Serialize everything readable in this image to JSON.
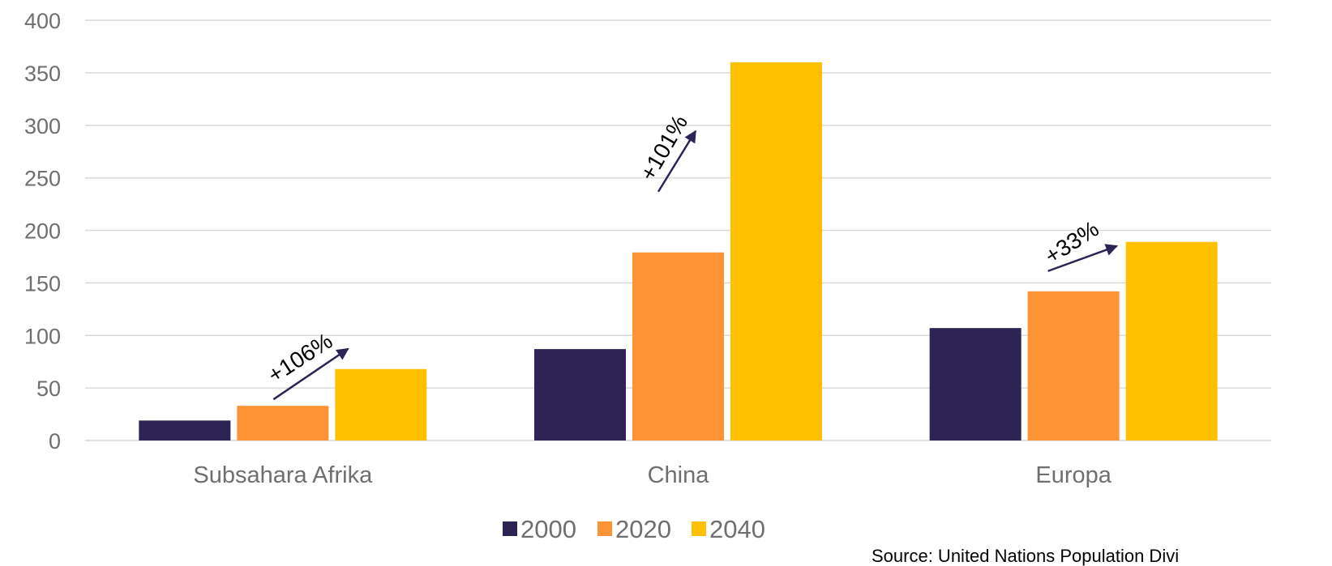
{
  "chart_data": {
    "type": "bar",
    "categories": [
      "Subsahara Afrika",
      "China",
      "Europa"
    ],
    "series": [
      {
        "name": "2000",
        "values": [
          19,
          87,
          107
        ],
        "color": "#2e2355"
      },
      {
        "name": "2020",
        "values": [
          33,
          179,
          142
        ],
        "color": "#fd9335"
      },
      {
        "name": "2040",
        "values": [
          68,
          360,
          189
        ],
        "color": "#fec000"
      }
    ],
    "ylim": [
      0,
      400
    ],
    "yticks": [
      0,
      50,
      100,
      150,
      200,
      250,
      300,
      350,
      400
    ],
    "grid": true,
    "legend_position": "bottom",
    "annotations": [
      {
        "category": "Subsahara Afrika",
        "text": "+106%"
      },
      {
        "category": "China",
        "text": "+101%"
      },
      {
        "category": "Europa",
        "text": "+33%"
      }
    ],
    "arrow_color": "#2e2355",
    "source": "Source: United Nations Population Divi"
  }
}
